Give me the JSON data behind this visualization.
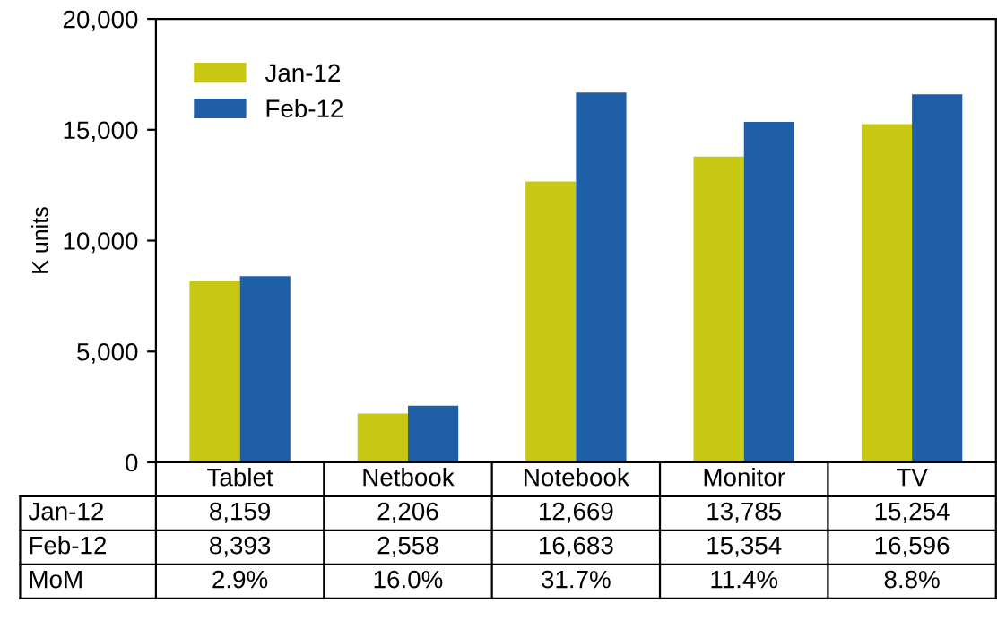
{
  "chart_data": {
    "type": "bar",
    "ylabel": "K units",
    "categories": [
      "Tablet",
      "Netbook",
      "Notebook",
      "Monitor",
      "TV"
    ],
    "series": [
      {
        "name": "Jan-12",
        "color": "#c8c814",
        "values": [
          8159,
          2206,
          12669,
          13785,
          15254
        ],
        "value_labels": [
          "8,159",
          "2,206",
          "12,669",
          "13,785",
          "15,254"
        ]
      },
      {
        "name": "Feb-12",
        "color": "#1f5fa8",
        "values": [
          8393,
          2558,
          16683,
          15354,
          16596
        ],
        "value_labels": [
          "8,393",
          "2,558",
          "16,683",
          "15,354",
          "16,596"
        ]
      }
    ],
    "ylim": [
      0,
      20000
    ],
    "yticks": [
      0,
      {
        "value": 5000,
        "label": "5,000"
      },
      {
        "value": 10000,
        "label": "10,000"
      },
      {
        "value": 15000,
        "label": "15,000"
      },
      {
        "value": 20000,
        "label": "20,000"
      }
    ],
    "legend": "top left",
    "annotations": [
      "MoM",
      "2.9%",
      "16.0%",
      "31.7%",
      "11.4%",
      "8.8%"
    ]
  }
}
